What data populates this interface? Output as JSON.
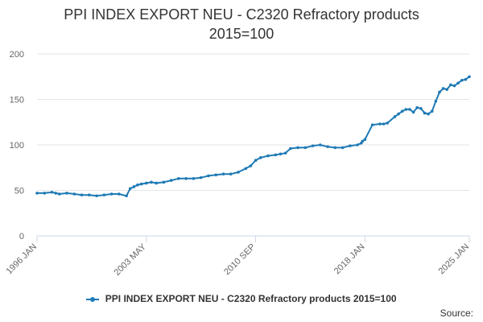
{
  "chart_data": {
    "type": "line",
    "title": "PPI INDEX EXPORT NEU - C2320 Refractory products",
    "subtitle": "2015=100",
    "xlabel": "",
    "ylabel": "",
    "ylim": [
      0,
      200
    ],
    "yticks": [
      0,
      50,
      100,
      150,
      200
    ],
    "xlim": [
      "1996-01",
      "2025-01"
    ],
    "xticks": [
      "1996 JAN",
      "2003 MAY",
      "2010 SEP",
      "2018 JAN",
      "2025 JAN"
    ],
    "grid": true,
    "legend": "bottom",
    "series": [
      {
        "name": "PPI INDEX EXPORT NEU - C2320 Refractory products 2015=100",
        "color": "#1f7ab5",
        "x": [
          "1996-01",
          "1996-07",
          "1997-01",
          "1997-04",
          "1997-07",
          "1998-01",
          "1998-07",
          "1999-01",
          "1999-07",
          "2000-01",
          "2000-07",
          "2001-01",
          "2001-07",
          "2002-01",
          "2002-04",
          "2002-07",
          "2002-10",
          "2003-01",
          "2003-05",
          "2003-09",
          "2004-01",
          "2004-07",
          "2005-01",
          "2005-07",
          "2006-01",
          "2006-07",
          "2007-01",
          "2007-07",
          "2008-01",
          "2008-07",
          "2009-01",
          "2009-07",
          "2010-01",
          "2010-05",
          "2010-09",
          "2011-01",
          "2011-07",
          "2012-01",
          "2012-05",
          "2012-09",
          "2013-01",
          "2013-07",
          "2014-01",
          "2014-07",
          "2015-01",
          "2015-07",
          "2016-01",
          "2016-07",
          "2017-01",
          "2017-07",
          "2017-10",
          "2017-11",
          "2018-01",
          "2018-07",
          "2019-01",
          "2019-04",
          "2019-07",
          "2020-01",
          "2020-04",
          "2020-07",
          "2020-10",
          "2021-01",
          "2021-04",
          "2021-07",
          "2021-10",
          "2022-01",
          "2022-04",
          "2022-07",
          "2022-10",
          "2023-01",
          "2023-04",
          "2023-07",
          "2023-10",
          "2024-01",
          "2024-04",
          "2024-07",
          "2024-10",
          "2025-01"
        ],
        "y": [
          47,
          47,
          48,
          47,
          46,
          47,
          46,
          45,
          45,
          44,
          45,
          46,
          46,
          44,
          52,
          54,
          56,
          57,
          58,
          59,
          58,
          59,
          61,
          63,
          63,
          63,
          64,
          66,
          67,
          68,
          68,
          70,
          74,
          77,
          83,
          86,
          88,
          89,
          90,
          91,
          96,
          97,
          97,
          99,
          100,
          98,
          97,
          97,
          99,
          100,
          102,
          104,
          106,
          122,
          123,
          123,
          124,
          131,
          134,
          137,
          139,
          139,
          136,
          141,
          140,
          135,
          134,
          137,
          148,
          158,
          162,
          161,
          166,
          165,
          168,
          171,
          172,
          175
        ]
      }
    ]
  },
  "source_label": "Source:"
}
